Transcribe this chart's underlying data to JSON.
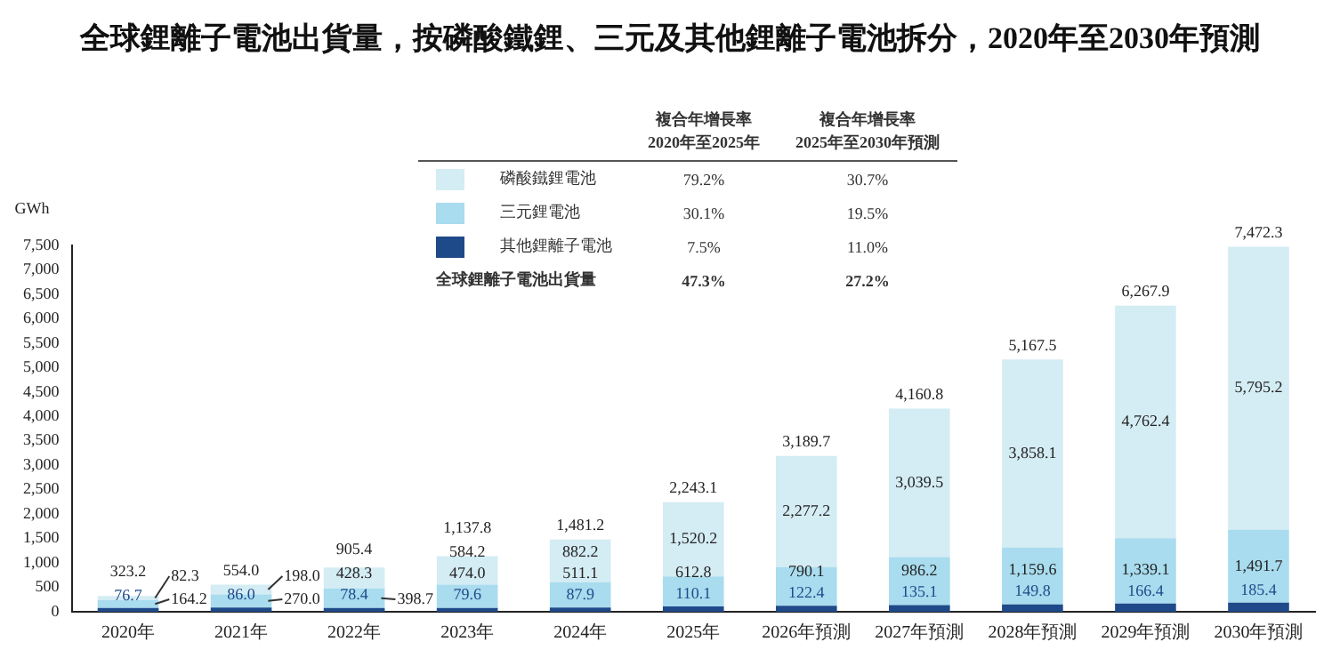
{
  "chart_data": {
    "type": "bar",
    "stacked": true,
    "title": "全球鋰離子電池出貨量，按磷酸鐵鋰、三元及其他鋰離子電池拆分，2020年至2030年預測",
    "ylabel": "GWh",
    "categories": [
      "2020年",
      "2021年",
      "2022年",
      "2023年",
      "2024年",
      "2025年",
      "2026年預測",
      "2027年預測",
      "2028年預測",
      "2029年預測",
      "2030年預測"
    ],
    "series": [
      {
        "name": "其他鋰離子電池",
        "color": "#1f4a8a",
        "values": [
          76.7,
          86,
          78.4,
          79.6,
          87.9,
          110.1,
          122.4,
          135.1,
          149.8,
          166.4,
          185.4
        ],
        "value_labels": [
          "76.7",
          "86.0",
          "78.4",
          "79.6",
          "87.9",
          "110.1",
          "122.4",
          "135.1",
          "149.8",
          "166.4",
          "185.4"
        ]
      },
      {
        "name": "三元鋰電池",
        "color": "#a8dcee",
        "values": [
          164.2,
          270,
          398.7,
          474,
          511.1,
          612.8,
          790.1,
          986.2,
          1159.6,
          1339.1,
          1491.7
        ],
        "value_labels": [
          "164.2",
          "270.0",
          "398.7",
          "474.0",
          "511.1",
          "612.8",
          "790.1",
          "986.2",
          "1,159.6",
          "1,339.1",
          "1,491.7"
        ]
      },
      {
        "name": "磷酸鐵鋰電池",
        "color": "#d4ecf4",
        "values": [
          82.3,
          198,
          428.3,
          584.2,
          882.2,
          1520.2,
          2277.2,
          3039.5,
          3858.1,
          4762.4,
          5795.2
        ],
        "value_labels": [
          "82.3",
          "198.0",
          "428.3",
          "584.2",
          "882.2",
          "1,520.2",
          "2,277.2",
          "3,039.5",
          "3,858.1",
          "4,762.4",
          "5,795.2"
        ]
      }
    ],
    "totals": [
      "323.2",
      "554.0",
      "905.4",
      "1,137.8",
      "1,481.2",
      "2,243.1",
      "3,189.7",
      "4,160.8",
      "5,167.5",
      "6,267.9",
      "7,472.3"
    ],
    "ylim": [
      0,
      7500
    ],
    "yticks": [
      0,
      {
        "value": 500,
        "label": "500"
      },
      {
        "value": 1000,
        "label": "1,000"
      },
      {
        "value": 1500,
        "label": "1,500"
      },
      {
        "value": 2000,
        "label": "2,000"
      },
      {
        "value": 2500,
        "label": "2,500"
      },
      {
        "value": 3000,
        "label": "3,000"
      },
      {
        "value": 3500,
        "label": "3,500"
      },
      {
        "value": 4000,
        "label": "4,000"
      },
      {
        "value": 4500,
        "label": "4,500"
      },
      {
        "value": 5000,
        "label": "5,000"
      },
      {
        "value": 5500,
        "label": "5,500"
      },
      {
        "value": 6000,
        "label": "6,000"
      },
      {
        "value": 6500,
        "label": "6,500"
      },
      {
        "value": 7000,
        "label": "7,000"
      },
      {
        "value": 7500,
        "label": "7,500"
      }
    ],
    "grid": false,
    "legend": "top",
    "data_labels": true,
    "annotations": [
      "複合年增長率\n2020年至2025年",
      "複合年增長率\n2025年至2030年預測",
      "7.5%",
      "11.0%",
      "30.1%",
      "19.5%",
      "79.2%",
      "30.7%",
      "全球鋰離子電池出貨量",
      "47.3%",
      "27.2%"
    ]
  }
}
